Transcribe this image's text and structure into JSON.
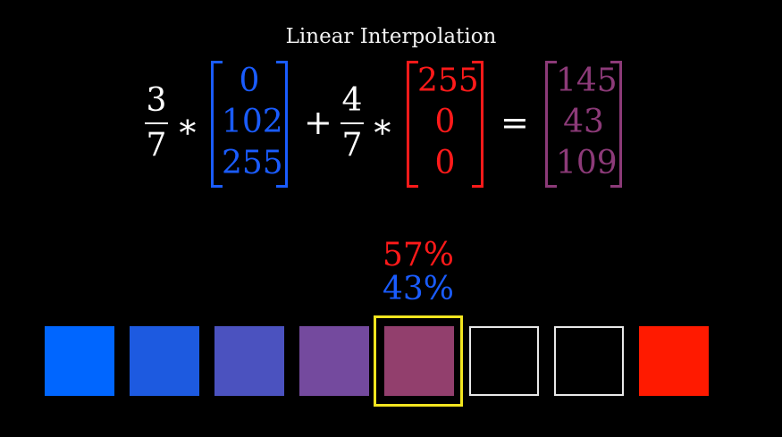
{
  "title": "Linear Interpolation",
  "equation": {
    "coef1": {
      "num": "3",
      "den": "7"
    },
    "coef2": {
      "num": "4",
      "den": "7"
    },
    "times": "∗",
    "plus": "+",
    "equals": "=",
    "vec_a": {
      "values": [
        "0",
        "102",
        "255"
      ],
      "color": "#1a5cff"
    },
    "vec_b": {
      "values": [
        "255",
        "0",
        "0"
      ],
      "color": "#ff1a1a"
    },
    "result": {
      "values": [
        "145",
        "43",
        "109"
      ],
      "color": "#8c3a78"
    }
  },
  "labels": {
    "red_pct": "57%",
    "blue_pct": "43%",
    "red_color": "#ff1a1a",
    "blue_color": "#1a5cff"
  },
  "swatches": [
    {
      "color": "#0066ff",
      "empty": false
    },
    {
      "color": "#1d5ae0",
      "empty": false
    },
    {
      "color": "#4b52bf",
      "empty": false
    },
    {
      "color": "#744a9e",
      "empty": false
    },
    {
      "color": "#923f6d",
      "empty": false,
      "selected": true
    },
    {
      "color": "#000000",
      "empty": true
    },
    {
      "color": "#000000",
      "empty": true
    },
    {
      "color": "#ff1a00",
      "empty": false
    }
  ],
  "highlight_color": "#f2e51f"
}
